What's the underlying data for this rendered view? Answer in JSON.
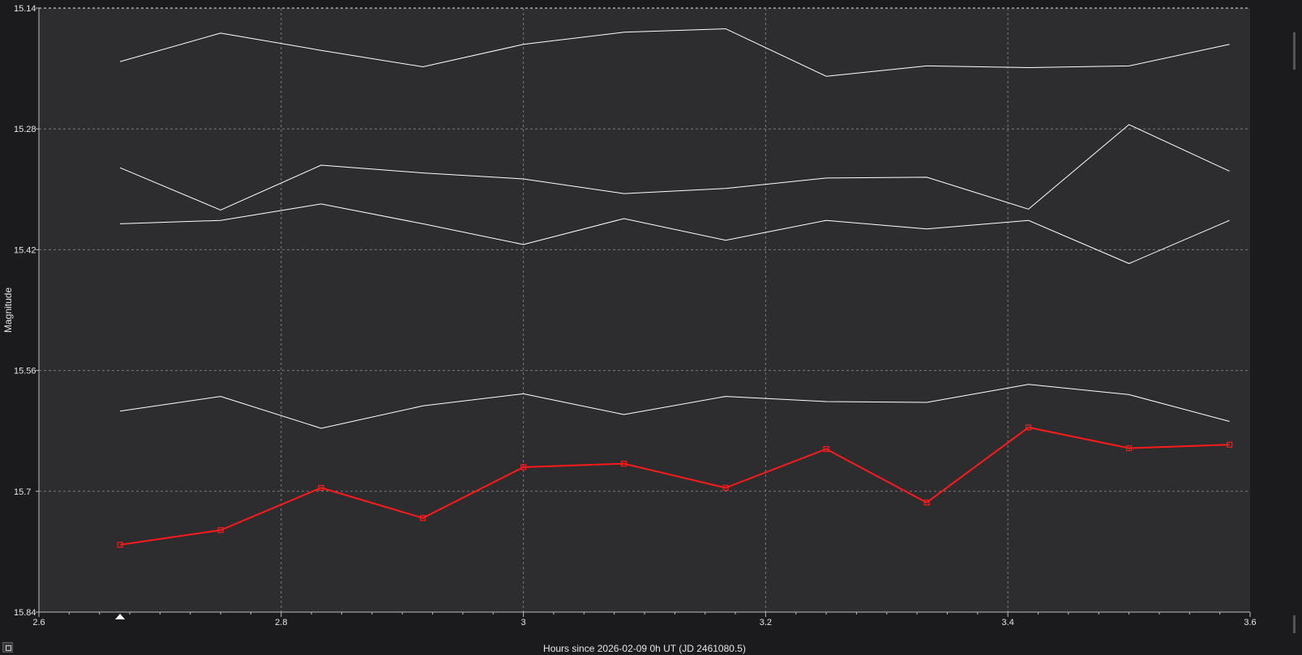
{
  "chart_data": {
    "type": "line",
    "xlabel": "Hours since 2026-02-09 0h UT (JD 2461080.5)",
    "ylabel": "Magnitude",
    "xlim": [
      2.6,
      3.6
    ],
    "ylim": [
      15.14,
      15.84
    ],
    "y_inverted": true,
    "grid": true,
    "xticks": [
      "2.6",
      "2.8",
      "3",
      "3.2",
      "3.4",
      "3.6"
    ],
    "yticks": [
      "15.14",
      "15.28",
      "15.42",
      "15.56",
      "15.7",
      "15.84"
    ],
    "x": [
      2.667,
      2.75,
      2.833,
      2.917,
      3.0,
      3.083,
      3.167,
      3.25,
      3.333,
      3.417,
      3.5,
      3.583
    ],
    "series": [
      {
        "color": "#ffffff",
        "markers": false,
        "values": [
          15.202,
          15.169,
          15.189,
          15.208,
          15.182,
          15.168,
          15.164,
          15.219,
          15.207,
          15.209,
          15.207,
          15.182
        ]
      },
      {
        "color": "#ffffff",
        "markers": false,
        "values": [
          15.325,
          15.374,
          15.322,
          15.331,
          15.338,
          15.355,
          15.349,
          15.337,
          15.336,
          15.373,
          15.275,
          15.329
        ]
      },
      {
        "color": "#ffffff",
        "markers": false,
        "values": [
          15.39,
          15.386,
          15.367,
          15.39,
          15.414,
          15.384,
          15.409,
          15.386,
          15.396,
          15.386,
          15.436,
          15.386
        ]
      },
      {
        "color": "#ffffff",
        "markers": false,
        "values": [
          15.607,
          15.59,
          15.627,
          15.601,
          15.587,
          15.611,
          15.59,
          15.596,
          15.597,
          15.576,
          15.588,
          15.619
        ]
      },
      {
        "color": "#ff1a1a",
        "markers": true,
        "values": [
          15.762,
          15.745,
          15.696,
          15.731,
          15.672,
          15.668,
          15.696,
          15.651,
          15.713,
          15.626,
          15.65,
          15.646
        ]
      }
    ],
    "triangle_marker_x": 2.667
  }
}
